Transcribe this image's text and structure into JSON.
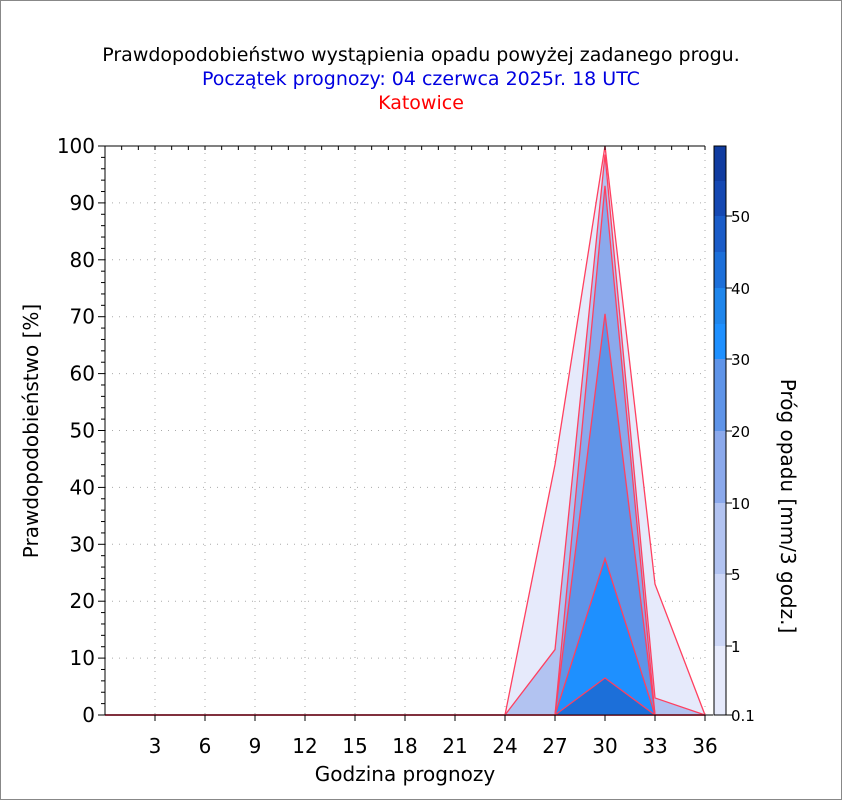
{
  "title": "Prawdopodobieństwo wystąpienia opadu powyżej zadanego progu.",
  "subtitle": "Początek prognozy: 04 czerwca 2025r. 18 UTC",
  "location": "Katowice",
  "colors": {
    "title": "#000000",
    "subtitle": "#0000e0",
    "location": "#ff0000",
    "outline": "#ff4060",
    "grid": "#aaaaaa"
  },
  "chart_data": {
    "type": "area",
    "xlabel": "Godzina prognozy",
    "ylabel": "Prawdopodobieństwo [%]",
    "xlim": [
      0,
      36
    ],
    "ylim": [
      0,
      100
    ],
    "x_ticks": [
      3,
      6,
      9,
      12,
      15,
      18,
      21,
      24,
      27,
      30,
      33,
      36
    ],
    "y_ticks": [
      0,
      10,
      20,
      30,
      40,
      50,
      60,
      70,
      80,
      90,
      100
    ],
    "grid": true,
    "colorbar": {
      "label": "Próg opadu [mm/3 godz.]",
      "ticks": [
        "0.1",
        "1",
        "5",
        "10",
        "20",
        "30",
        "40",
        "50"
      ],
      "colors": [
        "#e6eafb",
        "#ccd6f6",
        "#b2c3f1",
        "#8ba9ec",
        "#5f94e8",
        "#1e90ff",
        "#1f86ec",
        "#1c6fd9",
        "#1a5cc8",
        "#1548b2",
        "#103ca0"
      ]
    },
    "series": [
      {
        "name": "0.1",
        "x": [
          0,
          3,
          6,
          9,
          12,
          15,
          18,
          21,
          24,
          27,
          30,
          33,
          36
        ],
        "values": [
          0,
          0,
          0,
          0,
          0,
          0,
          0,
          0,
          0,
          44,
          100,
          23,
          0
        ],
        "color": "#e6eafb"
      },
      {
        "name": "1",
        "x": [
          0,
          3,
          6,
          9,
          12,
          15,
          18,
          21,
          24,
          27,
          30,
          33,
          36
        ],
        "values": [
          0,
          0,
          0,
          0,
          0,
          0,
          0,
          0,
          0,
          11.5,
          98.5,
          3,
          0
        ],
        "color": "#b2c3f1"
      },
      {
        "name": "5",
        "x": [
          0,
          3,
          6,
          9,
          12,
          15,
          18,
          21,
          24,
          27,
          30,
          33,
          36
        ],
        "values": [
          0,
          0,
          0,
          0,
          0,
          0,
          0,
          0,
          0,
          0,
          93,
          0,
          0
        ],
        "color": "#8ba9ec"
      },
      {
        "name": "10",
        "x": [
          0,
          3,
          6,
          9,
          12,
          15,
          18,
          21,
          24,
          27,
          30,
          33,
          36
        ],
        "values": [
          0,
          0,
          0,
          0,
          0,
          0,
          0,
          0,
          0,
          0,
          70.5,
          0,
          0
        ],
        "color": "#5f94e8"
      },
      {
        "name": "20",
        "x": [
          0,
          3,
          6,
          9,
          12,
          15,
          18,
          21,
          24,
          27,
          30,
          33,
          36
        ],
        "values": [
          0,
          0,
          0,
          0,
          0,
          0,
          0,
          0,
          0,
          0,
          27.5,
          0,
          0
        ],
        "color": "#1e90ff"
      },
      {
        "name": "30",
        "x": [
          0,
          3,
          6,
          9,
          12,
          15,
          18,
          21,
          24,
          27,
          30,
          33,
          36
        ],
        "values": [
          0,
          0,
          0,
          0,
          0,
          0,
          0,
          0,
          0,
          0,
          6.5,
          0,
          0
        ],
        "color": "#1c6fd9"
      }
    ]
  }
}
